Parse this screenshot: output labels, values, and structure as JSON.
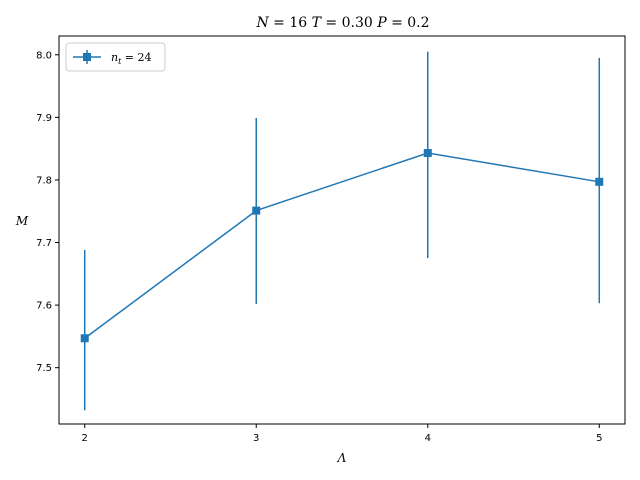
{
  "chart_data": {
    "type": "line",
    "title": "N = 16 T = 0.30 P = 0.2",
    "xlabel": "Λ",
    "ylabel": "M",
    "x": [
      2,
      3,
      4,
      5
    ],
    "x_ticks": [
      "2",
      "3",
      "4",
      "5"
    ],
    "y_ticks": [
      "7.5",
      "7.6",
      "7.7",
      "7.8",
      "7.9",
      "8.0"
    ],
    "xlim": [
      1.85,
      5.15
    ],
    "ylim": [
      7.41,
      8.03
    ],
    "grid": false,
    "legend_position": "top-left",
    "series": [
      {
        "name": "n_t = 24",
        "legend_label": "nt = 24",
        "color": "#1f77b4",
        "marker": "square",
        "y": [
          7.547,
          7.751,
          7.843,
          7.797
        ],
        "yerr_low": [
          7.432,
          7.602,
          7.675,
          7.603
        ],
        "yerr_high": [
          7.688,
          7.899,
          8.005,
          7.995
        ]
      }
    ]
  }
}
